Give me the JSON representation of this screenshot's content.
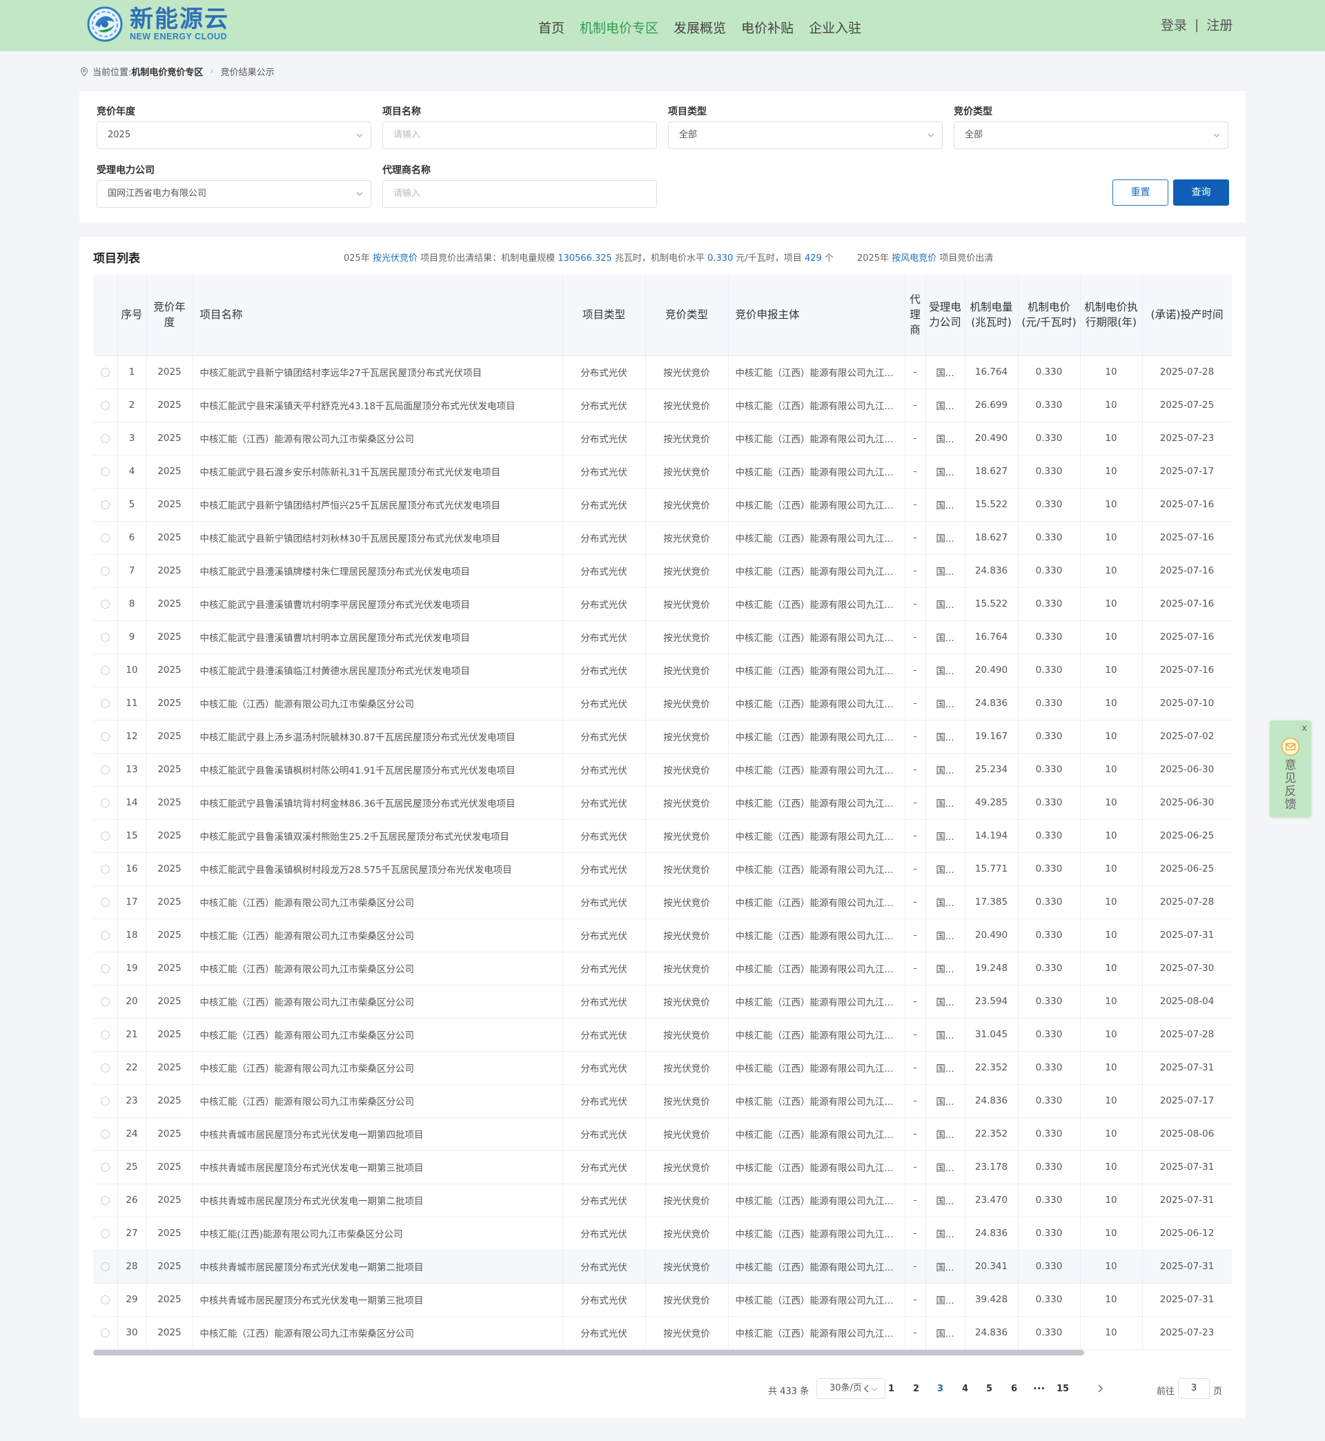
{
  "brand": {
    "name_cn": "新能源云",
    "name_en": "NEW ENERGY CLOUD"
  },
  "nav": [
    "首页",
    "机制电价专区",
    "发展概览",
    "电价补贴",
    "企业入驻"
  ],
  "nav_active": 1,
  "auth": {
    "login": "登录",
    "sep": "|",
    "register": "注册"
  },
  "breadcrumb": {
    "prefix": "当前位置:",
    "section": "机制电价竞价专区",
    "current": "竞价结果公示"
  },
  "filters": {
    "year": {
      "label": "竞价年度",
      "value": "2025"
    },
    "project_name": {
      "label": "项目名称",
      "placeholder": "请输入"
    },
    "project_type": {
      "label": "项目类型",
      "value": "全部"
    },
    "bid_type": {
      "label": "竞价类型",
      "value": "全部"
    },
    "power_company": {
      "label": "受理电力公司",
      "value": "国网江西省电力有限公司"
    },
    "agent_name": {
      "label": "代理商名称",
      "placeholder": "请输入"
    },
    "reset_label": "重置",
    "query_label": "查询"
  },
  "list": {
    "title": "项目列表",
    "summary": {
      "a": "025年 ",
      "b": "按光伏竞价",
      "c": " 项目竞价出清结果：机制电量规模 ",
      "d": "130566.325",
      "e": " 兆瓦时，机制电价水平 ",
      "f": "0.330",
      "g": " 元/千瓦时，项目 ",
      "h": "429",
      "i": " 个",
      "j": "2025年 ",
      "k": "按风电竞价",
      "l": " 项目竞价出清"
    },
    "columns": [
      "序号",
      "竞价年度",
      "项目名称",
      "项目类型",
      "竞价类型",
      "竞价申报主体",
      "代理商",
      "受理电力公司",
      "机制电量(兆瓦时)",
      "机制电价(元/千瓦时)",
      "机制电价执行期限(年)",
      "(承诺)投产时间"
    ],
    "rows": [
      [
        "1",
        "2025",
        "中核汇能武宁县新宁镇团结村李远华27千瓦居民屋顶分布式光伏项目",
        "分布式光伏",
        "按光伏竞价",
        "中核汇能（江西）能源有限公司九江...",
        "-",
        "国...",
        "16.764",
        "0.330",
        "10",
        "2025-07-28"
      ],
      [
        "2",
        "2025",
        "中核汇能武宁县宋溪镇天平村舒克光43.18千瓦局面屋顶分布式光伏发电项目",
        "分布式光伏",
        "按光伏竞价",
        "中核汇能（江西）能源有限公司九江...",
        "-",
        "国...",
        "26.699",
        "0.330",
        "10",
        "2025-07-25"
      ],
      [
        "3",
        "2025",
        "中核汇能（江西）能源有限公司九江市柴桑区分公司",
        "分布式光伏",
        "按光伏竞价",
        "中核汇能（江西）能源有限公司九江...",
        "-",
        "国...",
        "20.490",
        "0.330",
        "10",
        "2025-07-23"
      ],
      [
        "4",
        "2025",
        "中核汇能武宁县石渡乡安乐村陈新礼31千瓦居民屋顶分布式光伏发电项目",
        "分布式光伏",
        "按光伏竞价",
        "中核汇能（江西）能源有限公司九江...",
        "-",
        "国...",
        "18.627",
        "0.330",
        "10",
        "2025-07-17"
      ],
      [
        "5",
        "2025",
        "中核汇能武宁县新宁镇团结村芦恒兴25千瓦居民屋顶分布式光伏发电项目",
        "分布式光伏",
        "按光伏竞价",
        "中核汇能（江西）能源有限公司九江...",
        "-",
        "国...",
        "15.522",
        "0.330",
        "10",
        "2025-07-16"
      ],
      [
        "6",
        "2025",
        "中核汇能武宁县新宁镇团结村刘秋林30千瓦居民屋顶分布式光伏发电项目",
        "分布式光伏",
        "按光伏竞价",
        "中核汇能（江西）能源有限公司九江...",
        "-",
        "国...",
        "18.627",
        "0.330",
        "10",
        "2025-07-16"
      ],
      [
        "7",
        "2025",
        "中核汇能武宁县澧溪镇牌楼村朱仁理居民屋顶分布式光伏发电项目",
        "分布式光伏",
        "按光伏竞价",
        "中核汇能（江西）能源有限公司九江...",
        "-",
        "国...",
        "24.836",
        "0.330",
        "10",
        "2025-07-16"
      ],
      [
        "8",
        "2025",
        "中核汇能武宁县澧溪镇曹坑村明李平居民屋顶分布式光伏发电项目",
        "分布式光伏",
        "按光伏竞价",
        "中核汇能（江西）能源有限公司九江...",
        "-",
        "国...",
        "15.522",
        "0.330",
        "10",
        "2025-07-16"
      ],
      [
        "9",
        "2025",
        "中核汇能武宁县澧溪镇曹坑村明本立居民屋顶分布式光伏发电项目",
        "分布式光伏",
        "按光伏竞价",
        "中核汇能（江西）能源有限公司九江...",
        "-",
        "国...",
        "16.764",
        "0.330",
        "10",
        "2025-07-16"
      ],
      [
        "10",
        "2025",
        "中核汇能武宁县澧溪镇临江村黄德水居民屋顶分布式光伏发电项目",
        "分布式光伏",
        "按光伏竞价",
        "中核汇能（江西）能源有限公司九江...",
        "-",
        "国...",
        "20.490",
        "0.330",
        "10",
        "2025-07-16"
      ],
      [
        "11",
        "2025",
        "中核汇能（江西）能源有限公司九江市柴桑区分公司",
        "分布式光伏",
        "按光伏竞价",
        "中核汇能（江西）能源有限公司九江...",
        "-",
        "国...",
        "24.836",
        "0.330",
        "10",
        "2025-07-10"
      ],
      [
        "12",
        "2025",
        "中核汇能武宁县上汤乡温汤村阮毓林30.87千瓦居民屋顶分布式光伏发电项目",
        "分布式光伏",
        "按光伏竞价",
        "中核汇能（江西）能源有限公司九江...",
        "-",
        "国...",
        "19.167",
        "0.330",
        "10",
        "2025-07-02"
      ],
      [
        "13",
        "2025",
        "中核汇能武宁县鲁溪镇枫树村陈公明41.91千瓦居民屋顶分布式光伏发电项目",
        "分布式光伏",
        "按光伏竞价",
        "中核汇能（江西）能源有限公司九江...",
        "-",
        "国...",
        "25.234",
        "0.330",
        "10",
        "2025-06-30"
      ],
      [
        "14",
        "2025",
        "中核汇能武宁县鲁溪镇坑背村柯金林86.36千瓦居民屋顶分布式光伏发电项目",
        "分布式光伏",
        "按光伏竞价",
        "中核汇能（江西）能源有限公司九江...",
        "-",
        "国...",
        "49.285",
        "0.330",
        "10",
        "2025-06-30"
      ],
      [
        "15",
        "2025",
        "中核汇能武宁县鲁溪镇双溪村熊贻生25.2千瓦居民屋顶分布式光伏发电项目",
        "分布式光伏",
        "按光伏竞价",
        "中核汇能（江西）能源有限公司九江...",
        "-",
        "国...",
        "14.194",
        "0.330",
        "10",
        "2025-06-25"
      ],
      [
        "16",
        "2025",
        "中核汇能武宁县鲁溪镇枫树村段龙万28.575千瓦居民屋顶分布光伏发电项目",
        "分布式光伏",
        "按光伏竞价",
        "中核汇能（江西）能源有限公司九江...",
        "-",
        "国...",
        "15.771",
        "0.330",
        "10",
        "2025-06-25"
      ],
      [
        "17",
        "2025",
        "中核汇能（江西）能源有限公司九江市柴桑区分公司",
        "分布式光伏",
        "按光伏竞价",
        "中核汇能（江西）能源有限公司九江...",
        "-",
        "国...",
        "17.385",
        "0.330",
        "10",
        "2025-07-28"
      ],
      [
        "18",
        "2025",
        "中核汇能（江西）能源有限公司九江市柴桑区分公司",
        "分布式光伏",
        "按光伏竞价",
        "中核汇能（江西）能源有限公司九江...",
        "-",
        "国...",
        "20.490",
        "0.330",
        "10",
        "2025-07-31"
      ],
      [
        "19",
        "2025",
        "中核汇能（江西）能源有限公司九江市柴桑区分公司",
        "分布式光伏",
        "按光伏竞价",
        "中核汇能（江西）能源有限公司九江...",
        "-",
        "国...",
        "19.248",
        "0.330",
        "10",
        "2025-07-30"
      ],
      [
        "20",
        "2025",
        "中核汇能（江西）能源有限公司九江市柴桑区分公司",
        "分布式光伏",
        "按光伏竞价",
        "中核汇能（江西）能源有限公司九江...",
        "-",
        "国...",
        "23.594",
        "0.330",
        "10",
        "2025-08-04"
      ],
      [
        "21",
        "2025",
        "中核汇能（江西）能源有限公司九江市柴桑区分公司",
        "分布式光伏",
        "按光伏竞价",
        "中核汇能（江西）能源有限公司九江...",
        "-",
        "国...",
        "31.045",
        "0.330",
        "10",
        "2025-07-28"
      ],
      [
        "22",
        "2025",
        "中核汇能（江西）能源有限公司九江市柴桑区分公司",
        "分布式光伏",
        "按光伏竞价",
        "中核汇能（江西）能源有限公司九江...",
        "-",
        "国...",
        "22.352",
        "0.330",
        "10",
        "2025-07-31"
      ],
      [
        "23",
        "2025",
        "中核汇能（江西）能源有限公司九江市柴桑区分公司",
        "分布式光伏",
        "按光伏竞价",
        "中核汇能（江西）能源有限公司九江...",
        "-",
        "国...",
        "24.836",
        "0.330",
        "10",
        "2025-07-17"
      ],
      [
        "24",
        "2025",
        "中核共青城市居民屋顶分布式光伏发电一期第四批项目",
        "分布式光伏",
        "按光伏竞价",
        "中核汇能（江西）能源有限公司九江...",
        "-",
        "国...",
        "22.352",
        "0.330",
        "10",
        "2025-08-06"
      ],
      [
        "25",
        "2025",
        "中核共青城市居民屋顶分布式光伏发电一期第三批项目",
        "分布式光伏",
        "按光伏竞价",
        "中核汇能（江西）能源有限公司九江...",
        "-",
        "国...",
        "23.178",
        "0.330",
        "10",
        "2025-07-31"
      ],
      [
        "26",
        "2025",
        "中核共青城市居民屋顶分布式光伏发电一期第二批项目",
        "分布式光伏",
        "按光伏竞价",
        "中核汇能（江西）能源有限公司九江...",
        "-",
        "国...",
        "23.470",
        "0.330",
        "10",
        "2025-07-31"
      ],
      [
        "27",
        "2025",
        "中核汇能(江西)能源有限公司九江市柴桑区分公司",
        "分布式光伏",
        "按光伏竞价",
        "中核汇能（江西）能源有限公司九江...",
        "-",
        "国...",
        "24.836",
        "0.330",
        "10",
        "2025-06-12"
      ],
      [
        "28",
        "2025",
        "中核共青城市居民屋顶分布式光伏发电一期第二批项目",
        "分布式光伏",
        "按光伏竞价",
        "中核汇能（江西）能源有限公司九江...",
        "-",
        "国...",
        "20.341",
        "0.330",
        "10",
        "2025-07-31"
      ],
      [
        "29",
        "2025",
        "中核共青城市居民屋顶分布式光伏发电一期第三批项目",
        "分布式光伏",
        "按光伏竞价",
        "中核汇能（江西）能源有限公司九江...",
        "-",
        "国...",
        "39.428",
        "0.330",
        "10",
        "2025-07-31"
      ],
      [
        "30",
        "2025",
        "中核汇能（江西）能源有限公司九江市柴桑区分公司",
        "分布式光伏",
        "按光伏竞价",
        "中核汇能（江西）能源有限公司九江...",
        "-",
        "国...",
        "24.836",
        "0.330",
        "10",
        "2025-07-23"
      ]
    ]
  },
  "pagination": {
    "total_text": "共 433 条",
    "page_size": "30条/页",
    "pages": [
      "1",
      "2",
      "3",
      "4",
      "5",
      "6",
      "•••",
      "15"
    ],
    "current": "3",
    "goto_label": "前往",
    "goto_value": "3",
    "page_suffix": "页"
  },
  "feedback": {
    "close": "x",
    "label": "意见反馈"
  },
  "colors": {
    "header_bg": "#c2e7c4",
    "nav_active": "#2f9c52",
    "primary": "#0e5fb5",
    "link": "#1e6fbe"
  },
  "icons": {
    "location": "location-pin-icon",
    "dropdown": "chevron-down-icon",
    "prev": "chevron-left-icon",
    "next": "chevron-right-icon",
    "feedback": "mail-icon"
  }
}
